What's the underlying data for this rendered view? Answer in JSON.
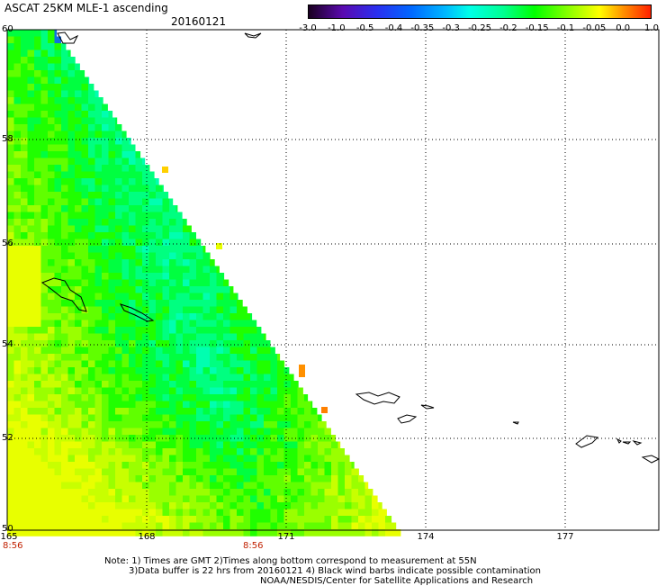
{
  "header": {
    "title": "ASCAT 25KM MLE-1 ascending",
    "date": "20160121"
  },
  "colorbar": {
    "ticks": [
      "-3.0",
      "-1.0",
      "-0.5",
      "-0.4",
      "-0.35",
      "-0.3",
      "-0.25",
      "-0.2",
      "-0.15",
      "-0.1",
      "-0.05",
      "0.0",
      "1.0"
    ],
    "colors": [
      "#1a0020",
      "#5a0ab0",
      "#2a2ff0",
      "#0068ff",
      "#00b8ff",
      "#00ffe8",
      "#00ff90",
      "#00ff00",
      "#8aff00",
      "#ffff00",
      "#ff9000",
      "#ff2000"
    ]
  },
  "axes": {
    "lat_labels": [
      "60",
      "58",
      "56",
      "54",
      "52",
      "50"
    ],
    "lon_labels": [
      "165",
      "168",
      "171",
      "174",
      "177"
    ]
  },
  "times": [
    "8:56",
    "8:56"
  ],
  "footer": {
    "note1": "Note: 1) Times are GMT 2)Times along bottom correspond to measurement at 55N",
    "note2": "3)Data buffer is 22 hrs from 20160121 4) Black wind barbs indicate possible contamination",
    "credit": "NOAA/NESDIS/Center for Satellite Applications and Research"
  }
}
